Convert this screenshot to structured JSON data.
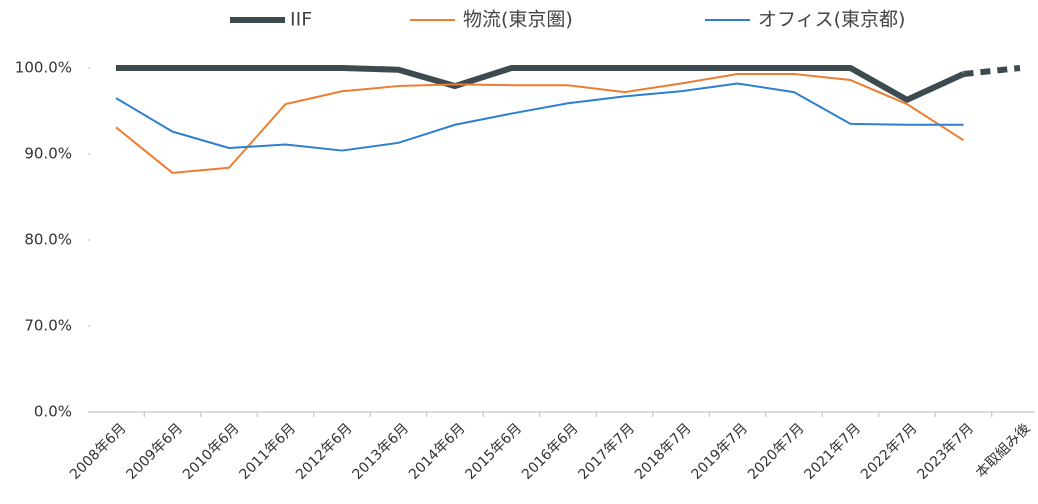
{
  "chart_data": {
    "type": "line",
    "categories": [
      "2008年6月",
      "2009年6月",
      "2010年6月",
      "2011年6月",
      "2012年6月",
      "2013年6月",
      "2014年6月",
      "2015年6月",
      "2016年6月",
      "2017年7月",
      "2018年7月",
      "2019年7月",
      "2020年7月",
      "2021年7月",
      "2022年7月",
      "2023年7月",
      "本取組み後"
    ],
    "series": [
      {
        "name": "IIF",
        "color": "#3d4a4f",
        "width": 6,
        "dash_from_index": 15,
        "values": [
          100,
          100,
          100,
          100,
          100,
          99.8,
          97.9,
          100,
          100,
          100,
          100,
          100,
          100,
          100,
          96.3,
          99.3,
          100
        ]
      },
      {
        "name": "物流(東京圏)",
        "color": "#ed7d31",
        "width": 2,
        "values": [
          93.1,
          87.8,
          88.4,
          95.8,
          97.3,
          97.9,
          98.1,
          98.0,
          98.0,
          97.2,
          98.2,
          99.3,
          99.3,
          98.6,
          95.8,
          91.6,
          null
        ]
      },
      {
        "name": "オフィス(東京都)",
        "color": "#2e7fd0",
        "width": 2,
        "values": [
          96.5,
          92.6,
          90.7,
          91.1,
          90.4,
          91.3,
          93.4,
          94.7,
          95.9,
          96.7,
          97.3,
          98.2,
          97.2,
          93.5,
          93.4,
          93.4,
          null
        ]
      }
    ],
    "ylim": [
      0,
      100
    ],
    "axis_break": true,
    "yticks": [
      {
        "value": 0,
        "label": "0.0%"
      },
      {
        "value": 70,
        "label": "70.0%"
      },
      {
        "value": 80,
        "label": "80.0%"
      },
      {
        "value": 90,
        "label": "90.0%"
      },
      {
        "value": 100,
        "label": "100.0%"
      }
    ],
    "grid": false,
    "legend": "top"
  }
}
